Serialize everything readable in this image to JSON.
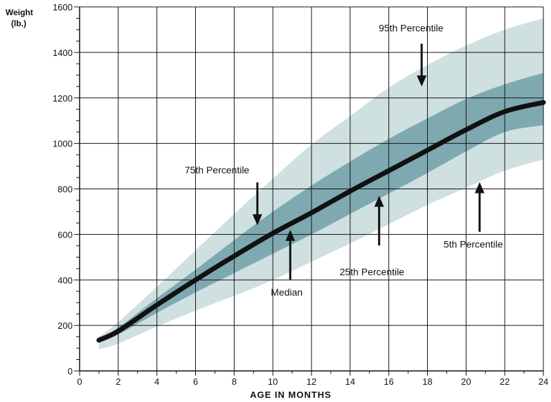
{
  "chart_data": {
    "type": "area",
    "y_axis_label": [
      "Weight",
      "(lb.)"
    ],
    "x_axis_label": "AGE IN MONTHS",
    "xlim": [
      0,
      24
    ],
    "ylim": [
      0,
      1600
    ],
    "x_ticks": [
      "0",
      "2",
      "4",
      "6",
      "8",
      "10",
      "12",
      "14",
      "16",
      "18",
      "20",
      "22",
      "24"
    ],
    "y_ticks": [
      "0",
      "200",
      "400",
      "600",
      "800",
      "1000",
      "1200",
      "1400",
      "1600"
    ],
    "grid": true,
    "x": [
      1,
      2,
      4,
      6,
      8,
      10,
      12,
      14,
      16,
      18,
      20,
      22,
      24
    ],
    "series": [
      {
        "name": "95th Percentile",
        "values": [
          150,
          215,
          370,
          530,
          690,
          845,
          995,
          1120,
          1245,
          1345,
          1430,
          1500,
          1550
        ]
      },
      {
        "name": "75th Percentile",
        "values": [
          142,
          190,
          320,
          445,
          575,
          700,
          815,
          920,
          1020,
          1110,
          1195,
          1260,
          1310
        ]
      },
      {
        "name": "Median",
        "values": [
          135,
          175,
          290,
          400,
          505,
          605,
          695,
          790,
          880,
          970,
          1060,
          1140,
          1180
        ]
      },
      {
        "name": "25th Percentile",
        "values": [
          125,
          160,
          255,
          345,
          430,
          515,
          600,
          690,
          780,
          870,
          965,
          1050,
          1080
        ]
      },
      {
        "name": "5th Percentile",
        "values": [
          95,
          120,
          195,
          265,
          330,
          400,
          480,
          560,
          645,
          730,
          805,
          880,
          930
        ]
      }
    ],
    "annotations": [
      {
        "text": "95th Percentile",
        "arrow": "down",
        "x": 17.7,
        "y": 1250
      },
      {
        "text": "75th Percentile",
        "arrow": "down",
        "x": 9.2,
        "y": 640
      },
      {
        "text": "Median",
        "arrow": "up",
        "x": 10.9,
        "y": 620
      },
      {
        "text": "25th Percentile",
        "arrow": "up",
        "x": 15.5,
        "y": 770
      },
      {
        "text": "5th Percentile",
        "arrow": "up",
        "x": 20.7,
        "y": 830
      }
    ],
    "colors": {
      "outer_band": "#cfe0e1",
      "inner_band": "#7fa9b1",
      "median_line": "#111111",
      "grid": "#111111"
    }
  }
}
